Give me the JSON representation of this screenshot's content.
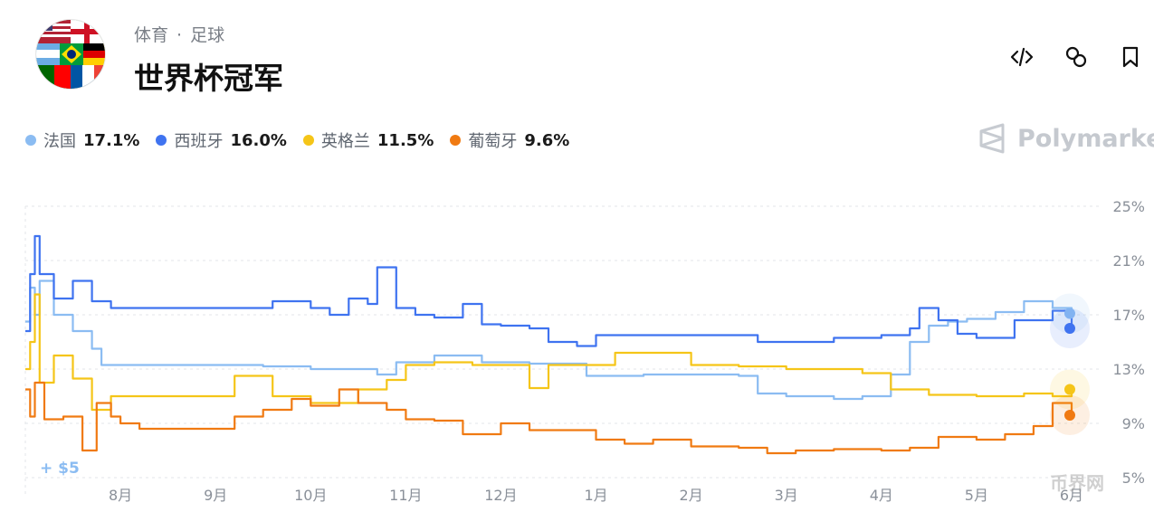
{
  "header": {
    "breadcrumb": [
      "体育",
      "足球"
    ],
    "title": "世界杯冠军"
  },
  "toolbar": {
    "embed_icon": "code-icon",
    "link_icon": "link-icon",
    "bookmark_icon": "bookmark-icon"
  },
  "brand": "Polymarket",
  "watermark": "币界网",
  "annotation": "+ $5",
  "colors": {
    "france": "#8bbcf2",
    "spain": "#3f73f0",
    "england": "#f5c518",
    "portugal": "#f07a12",
    "grid": "#e3e6ea",
    "axis_text": "#8a9099"
  },
  "chart_data": {
    "type": "line",
    "title": "",
    "xlabel": "",
    "ylabel": "",
    "ylim": [
      5,
      25
    ],
    "y_ticks": [
      "25%",
      "21%",
      "17%",
      "13%",
      "9%",
      "5%"
    ],
    "y_tick_values": [
      25,
      21,
      17,
      13,
      9,
      5
    ],
    "x_ticks": [
      "8月",
      "9月",
      "10月",
      "11月",
      "12月",
      "1月",
      "2月",
      "3月",
      "4月",
      "5月",
      "6月"
    ],
    "x_tick_positions": [
      1,
      2,
      3,
      4,
      5,
      6,
      7,
      8,
      9,
      10,
      11
    ],
    "xlim": [
      0,
      11.2
    ],
    "grid": true,
    "legend_position": "top-left",
    "series": [
      {
        "name": "法国",
        "label": "17.1%",
        "color": "#8bbcf2",
        "last": 17.1,
        "points": [
          [
            0,
            16.5
          ],
          [
            0.05,
            19
          ],
          [
            0.1,
            17
          ],
          [
            0.15,
            19.5
          ],
          [
            0.3,
            17
          ],
          [
            0.5,
            15.8
          ],
          [
            0.7,
            14.5
          ],
          [
            0.8,
            13.3
          ],
          [
            1.5,
            13.3
          ],
          [
            2.5,
            13.2
          ],
          [
            3.0,
            13.0
          ],
          [
            3.7,
            12.6
          ],
          [
            3.9,
            13.5
          ],
          [
            4.3,
            14.0
          ],
          [
            4.8,
            13.5
          ],
          [
            5.3,
            13.4
          ],
          [
            5.9,
            12.5
          ],
          [
            6.5,
            12.6
          ],
          [
            7.1,
            12.6
          ],
          [
            7.5,
            12.5
          ],
          [
            7.7,
            11.2
          ],
          [
            8.0,
            11.0
          ],
          [
            8.5,
            10.8
          ],
          [
            8.8,
            11.0
          ],
          [
            9.1,
            12.6
          ],
          [
            9.3,
            15.0
          ],
          [
            9.5,
            16.2
          ],
          [
            9.7,
            16.5
          ],
          [
            9.9,
            16.7
          ],
          [
            10.2,
            17.2
          ],
          [
            10.5,
            18.0
          ],
          [
            10.8,
            17.5
          ],
          [
            11.0,
            17.1
          ]
        ]
      },
      {
        "name": "西班牙",
        "label": "16.0%",
        "color": "#3f73f0",
        "last": 16.0,
        "points": [
          [
            0,
            15.8
          ],
          [
            0.05,
            20
          ],
          [
            0.1,
            22.8
          ],
          [
            0.15,
            20
          ],
          [
            0.3,
            18.2
          ],
          [
            0.5,
            19.5
          ],
          [
            0.7,
            18.0
          ],
          [
            0.9,
            17.5
          ],
          [
            1.5,
            17.5
          ],
          [
            2.4,
            17.5
          ],
          [
            2.6,
            18.0
          ],
          [
            3.0,
            17.5
          ],
          [
            3.2,
            17.0
          ],
          [
            3.4,
            18.2
          ],
          [
            3.6,
            17.8
          ],
          [
            3.7,
            20.5
          ],
          [
            3.9,
            17.5
          ],
          [
            4.1,
            17.0
          ],
          [
            4.3,
            16.8
          ],
          [
            4.6,
            17.8
          ],
          [
            4.8,
            16.3
          ],
          [
            5.0,
            16.2
          ],
          [
            5.3,
            16.0
          ],
          [
            5.5,
            15.0
          ],
          [
            5.8,
            14.7
          ],
          [
            6.0,
            15.5
          ],
          [
            6.5,
            15.5
          ],
          [
            7.0,
            15.5
          ],
          [
            7.5,
            15.5
          ],
          [
            7.7,
            15.0
          ],
          [
            8.0,
            15.0
          ],
          [
            8.5,
            15.3
          ],
          [
            9.0,
            15.5
          ],
          [
            9.3,
            16.0
          ],
          [
            9.4,
            17.5
          ],
          [
            9.6,
            16.6
          ],
          [
            9.8,
            15.6
          ],
          [
            10.0,
            15.3
          ],
          [
            10.4,
            16.6
          ],
          [
            10.8,
            17.3
          ],
          [
            11.0,
            16.0
          ]
        ]
      },
      {
        "name": "英格兰",
        "label": "11.5%",
        "color": "#f5c518",
        "last": 11.5,
        "points": [
          [
            0,
            13.0
          ],
          [
            0.05,
            15
          ],
          [
            0.1,
            18.5
          ],
          [
            0.15,
            12.0
          ],
          [
            0.3,
            14.0
          ],
          [
            0.5,
            12.3
          ],
          [
            0.7,
            10.0
          ],
          [
            0.9,
            11.0
          ],
          [
            1.2,
            11.0
          ],
          [
            2.0,
            11.0
          ],
          [
            2.2,
            12.5
          ],
          [
            2.6,
            11.0
          ],
          [
            3.0,
            10.5
          ],
          [
            3.5,
            11.5
          ],
          [
            3.8,
            12.2
          ],
          [
            4.0,
            13.3
          ],
          [
            4.3,
            13.5
          ],
          [
            4.7,
            13.3
          ],
          [
            5.0,
            13.3
          ],
          [
            5.3,
            11.6
          ],
          [
            5.5,
            13.3
          ],
          [
            6.0,
            13.3
          ],
          [
            6.2,
            14.2
          ],
          [
            6.8,
            14.2
          ],
          [
            7.0,
            13.3
          ],
          [
            7.5,
            13.2
          ],
          [
            8.0,
            13.0
          ],
          [
            8.4,
            13.0
          ],
          [
            8.8,
            12.7
          ],
          [
            9.1,
            11.5
          ],
          [
            9.5,
            11.1
          ],
          [
            10.0,
            11.0
          ],
          [
            10.5,
            11.2
          ],
          [
            10.8,
            11.0
          ],
          [
            11.0,
            11.5
          ]
        ]
      },
      {
        "name": "葡萄牙",
        "label": "9.6%",
        "color": "#f07a12",
        "last": 9.6,
        "points": [
          [
            0,
            11.5
          ],
          [
            0.05,
            9.5
          ],
          [
            0.1,
            12.0
          ],
          [
            0.2,
            9.3
          ],
          [
            0.4,
            9.5
          ],
          [
            0.6,
            7.0
          ],
          [
            0.75,
            10.5
          ],
          [
            0.9,
            9.5
          ],
          [
            1.0,
            9.0
          ],
          [
            1.2,
            8.6
          ],
          [
            1.6,
            8.6
          ],
          [
            2.0,
            8.6
          ],
          [
            2.2,
            9.5
          ],
          [
            2.5,
            10.0
          ],
          [
            2.8,
            10.8
          ],
          [
            3.0,
            10.3
          ],
          [
            3.3,
            11.5
          ],
          [
            3.5,
            10.5
          ],
          [
            3.8,
            10.0
          ],
          [
            4.0,
            9.3
          ],
          [
            4.3,
            9.2
          ],
          [
            4.6,
            8.2
          ],
          [
            5.0,
            9.0
          ],
          [
            5.3,
            8.5
          ],
          [
            5.7,
            8.5
          ],
          [
            6.0,
            7.8
          ],
          [
            6.3,
            7.5
          ],
          [
            6.6,
            7.8
          ],
          [
            7.0,
            7.3
          ],
          [
            7.5,
            7.2
          ],
          [
            7.8,
            6.8
          ],
          [
            8.1,
            7.0
          ],
          [
            8.5,
            7.1
          ],
          [
            9.0,
            7.0
          ],
          [
            9.3,
            7.2
          ],
          [
            9.6,
            8.0
          ],
          [
            10.0,
            7.8
          ],
          [
            10.3,
            8.2
          ],
          [
            10.6,
            8.8
          ],
          [
            10.8,
            10.5
          ],
          [
            11.0,
            9.6
          ]
        ]
      }
    ]
  }
}
